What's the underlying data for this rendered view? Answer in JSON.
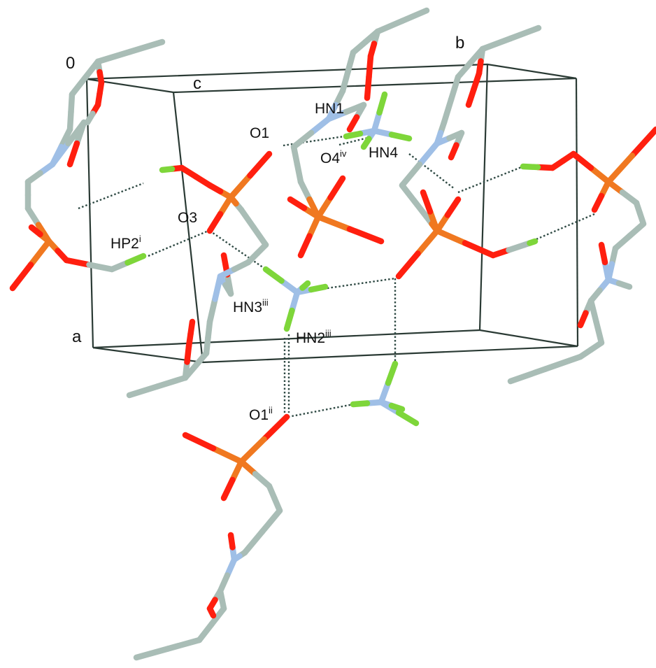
{
  "figure": {
    "axes": {
      "origin": "0",
      "a": "a",
      "b": "b",
      "c": "c"
    },
    "atom_labels": [
      {
        "base": "O1",
        "sup": ""
      },
      {
        "base": "HN1",
        "sup": ""
      },
      {
        "base": "O4",
        "sup": "iv"
      },
      {
        "base": "HN4",
        "sup": ""
      },
      {
        "base": "O3",
        "sup": ""
      },
      {
        "base": "HP2",
        "sup": "i"
      },
      {
        "base": "HN3",
        "sup": "iii"
      },
      {
        "base": "HN2",
        "sup": "iii"
      },
      {
        "base": "O1",
        "sup": "ii"
      }
    ],
    "colors": {
      "carbon": "#a9bdb6",
      "oxygen": "#ff1f0f",
      "nitrogen": "#9fbfe6",
      "phosphorus": "#f07820",
      "hydrogen": "#7ed63a",
      "cell_edge": "#2a3a34",
      "hbond": "#2f4a44"
    }
  }
}
